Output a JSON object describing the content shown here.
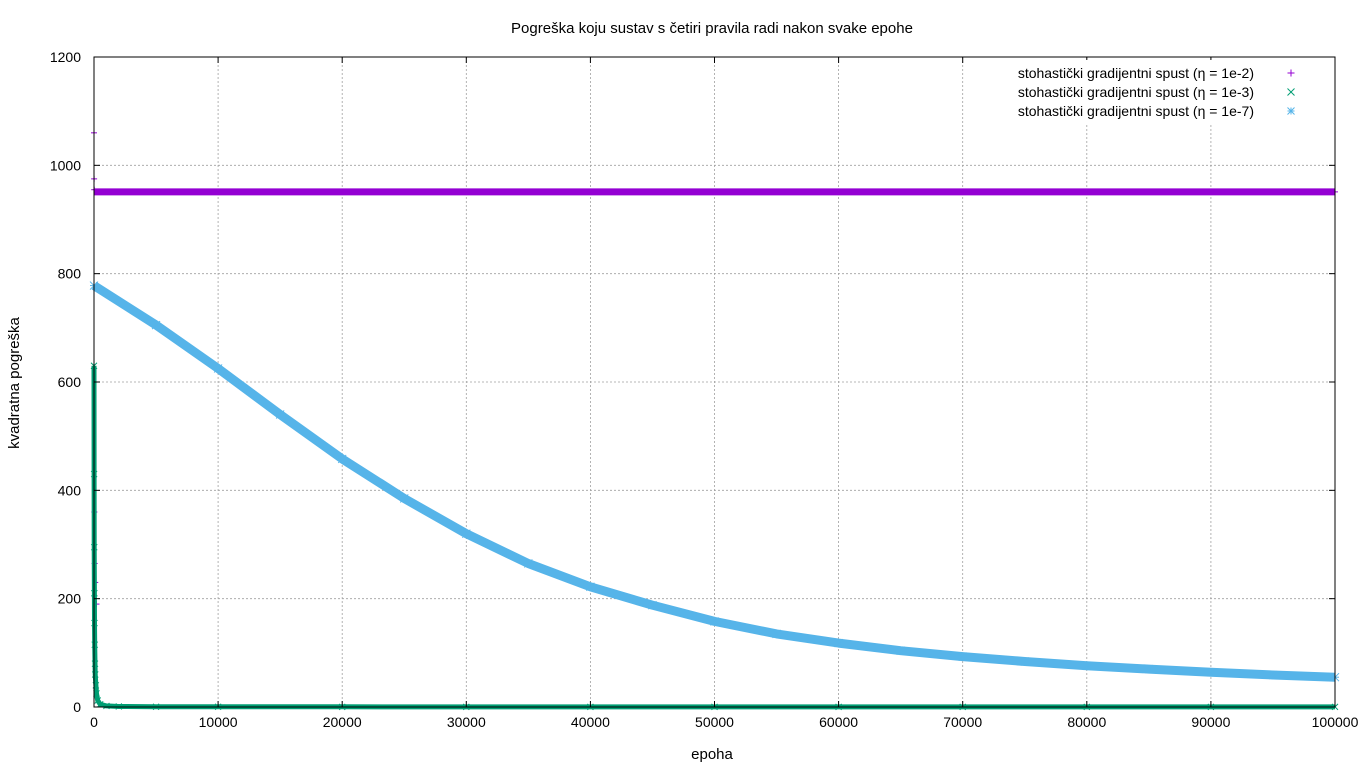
{
  "chart_data": {
    "type": "scatter",
    "title": "Pogreška koju sustav s četiri pravila radi nakon svake epohe",
    "xlabel": "epoha",
    "ylabel": "kvadratna pogreška",
    "xlim": [
      0,
      100000
    ],
    "ylim": [
      0,
      1200
    ],
    "x_ticks": [
      "0",
      "10000",
      "20000",
      "30000",
      "40000",
      "50000",
      "60000",
      "70000",
      "80000",
      "90000",
      "100000"
    ],
    "y_ticks": [
      "0",
      "200",
      "400",
      "600",
      "800",
      "1000",
      "1200"
    ],
    "grid": true,
    "legend_position": "top-right",
    "series": [
      {
        "name": "stohastički gradijentni spust (η = 1e-2)",
        "marker": "+",
        "color": "#9400d3",
        "x": [
          0,
          10,
          20,
          30,
          50,
          100,
          200,
          500,
          1000,
          5000,
          10000,
          20000,
          30000,
          40000,
          50000,
          60000,
          70000,
          80000,
          90000,
          100000
        ],
        "y": [
          1060,
          975,
          955,
          360,
          265,
          230,
          190,
          951,
          951,
          951,
          951,
          951,
          951,
          951,
          951,
          951,
          951,
          951,
          951,
          951
        ]
      },
      {
        "name": "stohastički gradijentni spust (η = 1e-3)",
        "marker": "×",
        "color": "#009e73",
        "x": [
          0,
          10,
          20,
          30,
          40,
          60,
          80,
          100,
          150,
          200,
          300,
          500,
          1000,
          2000,
          5000,
          10000,
          20000,
          30000,
          40000,
          50000,
          60000,
          70000,
          80000,
          90000,
          100000
        ],
        "y": [
          630,
          430,
          295,
          210,
          155,
          115,
          80,
          60,
          40,
          25,
          12,
          5,
          2,
          1,
          0.5,
          0.4,
          0.3,
          0.2,
          0.2,
          0.2,
          0.2,
          0.2,
          0.2,
          0.2,
          0.2
        ]
      },
      {
        "name": "stohastički gradijentni spust (η = 1e-7)",
        "marker": "*",
        "color": "#56b4e9",
        "x": [
          0,
          5000,
          10000,
          15000,
          20000,
          25000,
          30000,
          35000,
          40000,
          45000,
          50000,
          55000,
          60000,
          65000,
          70000,
          75000,
          80000,
          85000,
          90000,
          95000,
          100000
        ],
        "y": [
          778,
          705,
          625,
          540,
          458,
          385,
          320,
          265,
          222,
          188,
          158,
          135,
          118,
          104,
          93,
          84,
          76,
          70,
          64,
          59,
          55
        ]
      }
    ]
  }
}
